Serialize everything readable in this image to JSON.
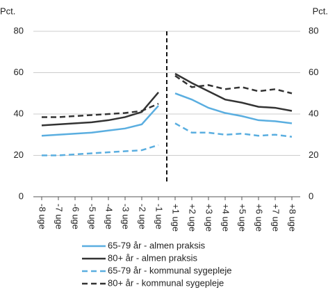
{
  "chart_data": {
    "type": "line",
    "ylabel": "Pct.",
    "y2label": "Pct.",
    "categories": [
      "-8 uge",
      "-7 uge",
      "-6 uge",
      "-5 uge",
      "-4 uge",
      "-3 uge",
      "-2 uge",
      "-1 uge",
      "+1 uge",
      "+2 uge",
      "+3 uge",
      "+4 uge",
      "+5 uge",
      "+6 uge",
      "+7 uge",
      "+8 uge"
    ],
    "divider_after": 7,
    "series": [
      {
        "name": "65-79 år - almen praksis",
        "color": "#5aaee0",
        "line_style": "solid",
        "values": [
          29.5,
          30,
          30.5,
          31,
          32,
          33,
          35,
          44,
          50,
          47,
          43,
          40.5,
          39,
          37,
          36.5,
          35.5
        ]
      },
      {
        "name": "80+ år - almen praksis",
        "color": "#333333",
        "line_style": "solid",
        "values": [
          34.5,
          35,
          35.5,
          36,
          37,
          38.5,
          41,
          50.5,
          59.5,
          55,
          51,
          47,
          45.5,
          43.5,
          43,
          41.5
        ]
      },
      {
        "name": "65-79 år - kommunal sygepleje",
        "color": "#5aaee0",
        "line_style": "dashed",
        "values": [
          20,
          20,
          20.5,
          21,
          21.5,
          22,
          22.5,
          25,
          35.5,
          31,
          31,
          30,
          30.5,
          29.5,
          30,
          29
        ]
      },
      {
        "name": "80+ år - kommunal sygepleje",
        "color": "#333333",
        "line_style": "dashed",
        "values": [
          38.5,
          38.5,
          39,
          39.5,
          40,
          40.5,
          41.5,
          45,
          58.5,
          53,
          54,
          52,
          53,
          51,
          52,
          50
        ]
      }
    ],
    "ylim": [
      0,
      80
    ],
    "yticks": [
      0,
      20,
      40,
      60,
      80
    ],
    "y2lim": [
      0,
      80
    ],
    "y2ticks": [
      0,
      20,
      40,
      60,
      80
    ],
    "grid": true
  }
}
